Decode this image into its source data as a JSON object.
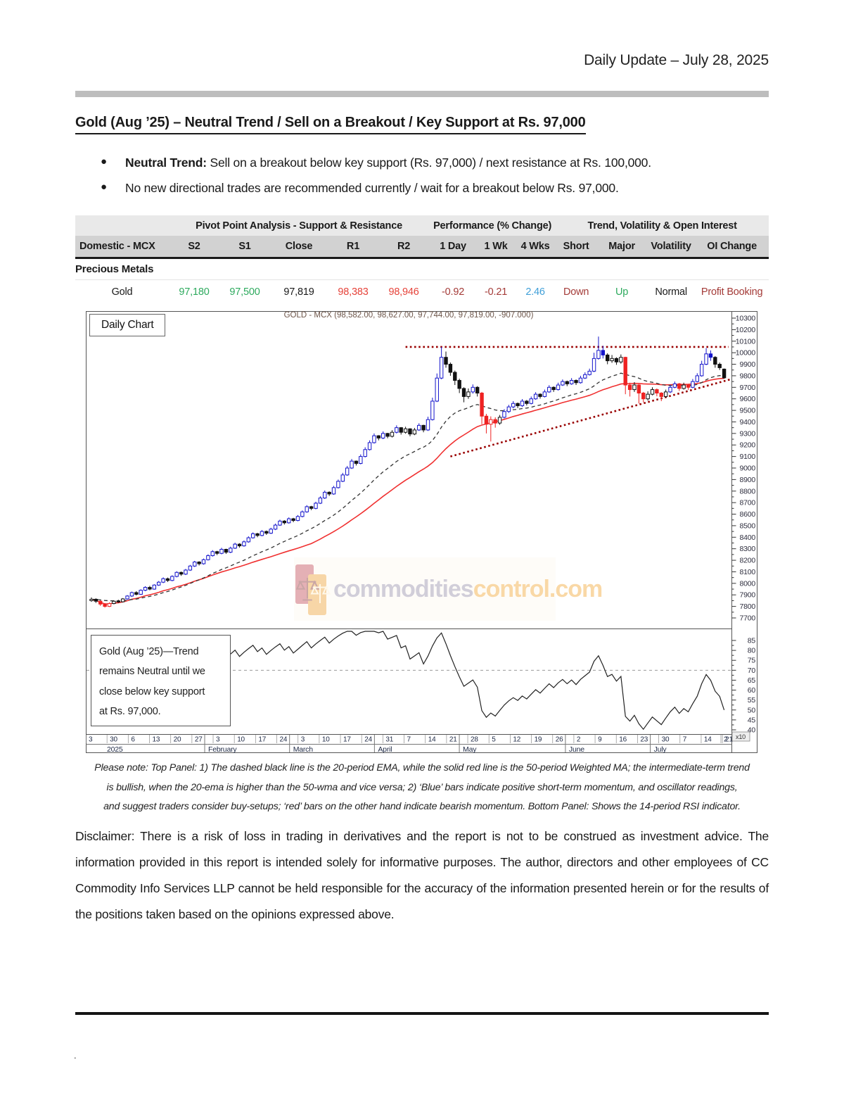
{
  "page": {
    "header_right": "Daily Update – July 28, 2025",
    "footer_dot": "."
  },
  "section": {
    "title": "Gold (Aug  ’25) – Neutral Trend / Sell on a Breakout / Key Support at Rs. 97,000",
    "bullets": [
      {
        "bold": "Neutral Trend:",
        "text": " Sell on a breakout below key support (Rs. 97,000) / next resistance at Rs. 100,000."
      },
      {
        "bold": "",
        "text": "No new directional trades are recommended currently / wait for a breakout below Rs. 97,000."
      }
    ]
  },
  "table": {
    "group_headers": [
      "Pivot Point Analysis - Support & Resistance",
      "Performance (% Change)",
      "Trend, Volatility & Open Interest"
    ],
    "columns": [
      "Domestic - MCX",
      "S2",
      "S1",
      "Close",
      "R1",
      "R2",
      "1 Day",
      "1 Wk",
      "4 Wks",
      "Short",
      "Major",
      "Volatility",
      "OI Change"
    ],
    "section_row": "Precious Metals",
    "rows": [
      {
        "name": "Gold",
        "s2": "97,180",
        "s1": "97,500",
        "close": "97,819",
        "r1": "98,383",
        "r2": "98,946",
        "d1": "-0.92",
        "w1": "-0.21",
        "w4": "2.46",
        "short": "Down",
        "major": "Up",
        "volatility": "Normal",
        "oi_change": "Profit Booking"
      }
    ]
  },
  "notes": {
    "lines": [
      "Please note: Top Panel: 1) The dashed black line is the 20-period EMA, while the solid red line is the 50-period Weighted MA; the intermediate-term trend",
      "is bullish, when the 20-ema is higher than the 50-wma and vice versa; 2)  ‘Blue’  bars indicate positive short-term momentum, and oscillator readings,",
      "and suggest traders consider buy-setups;  ‘red’  bars on the other hand indicate bearish momentum. Bottom Panel: Shows the 14-period RSI indicator."
    ],
    "disclaimer": "Disclaimer: There is a risk of loss in trading in derivatives and the report is not to be construed as investment advice. The information provided in this report is intended solely for informative purposes. The author, directors and other employees of CC Commodity Info Services LLP cannot be held responsible for the accuracy of the information presented herein or for the results of the positions taken based on the opinions expressed above."
  },
  "chart_data": {
    "type": "candlestick",
    "title": "GOLD - MCX (98,582.00, 98,627.00, 97,744.00, 97,819.00, -907.000)",
    "panel_label": "Daily Chart",
    "price_axis": {
      "min": 7700,
      "max": 10300,
      "step": 100,
      "multiplier_badge": "x10"
    },
    "rsi_axis": {
      "min": 40,
      "max": 85,
      "step": 5
    },
    "x_axis": {
      "year_label": "2025",
      "week_ticks": [
        "3",
        "30",
        "6",
        "13",
        "20",
        "27",
        "3",
        "10",
        "17",
        "24",
        "3",
        "10",
        "17",
        "24",
        "31",
        "7",
        "14",
        "21",
        "28",
        "5",
        "12",
        "19",
        "26",
        "2",
        "9",
        "16",
        "23",
        "30",
        "7",
        "14",
        "21",
        "2"
      ],
      "months": [
        {
          "label": "2025",
          "tick": 0
        },
        {
          "label": "February",
          "tick": 6
        },
        {
          "label": "March",
          "tick": 10
        },
        {
          "label": "April",
          "tick": 14
        },
        {
          "label": "May",
          "tick": 18
        },
        {
          "label": "June",
          "tick": 23
        },
        {
          "label": "July",
          "tick": 27
        }
      ]
    },
    "annotation_box": {
      "lines": [
        "Gold (Aug  ’25)—Trend",
        "remains Neutral until we",
        "close below key support",
        "at Rs. 97,000."
      ]
    },
    "watermark": {
      "text_gray": "commodities",
      "text_orange": "control.com"
    },
    "indicators": {
      "ema_period": 20,
      "wma_period": 50,
      "rsi_period": 14,
      "rsi_reference": 70
    },
    "trendlines": [
      {
        "kind": "resistance",
        "x1_candle": 70,
        "value1": 10050,
        "x2_candle": 142,
        "value2": 10050
      },
      {
        "kind": "support",
        "x1_candle": 80,
        "value1": 9100,
        "x2_candle": 142.5,
        "value2": 9770
      }
    ],
    "colors": {
      "up_momentum": "#1414cc",
      "down_momentum": "#ee2222",
      "neutral": "#111111",
      "wma": "#f03030",
      "ema": "#333333",
      "trendline": "#990000",
      "rsi_line": "#222222",
      "table_green": "#2eaa5e",
      "table_red": "#e6433a",
      "table_maroon": "#a43b38",
      "table_blue": "#3f9fd8"
    },
    "candles": [
      [
        7850,
        7878,
        7840,
        7862,
        "k"
      ],
      [
        7862,
        7870,
        7830,
        7845,
        "k"
      ],
      [
        7845,
        7852,
        7805,
        7820,
        "r"
      ],
      [
        7820,
        7828,
        7790,
        7800,
        "r"
      ],
      [
        7800,
        7835,
        7795,
        7825,
        "r"
      ],
      [
        7825,
        7852,
        7818,
        7845,
        "k"
      ],
      [
        7845,
        7858,
        7830,
        7840,
        "k"
      ],
      [
        7840,
        7872,
        7835,
        7865,
        "k"
      ],
      [
        7865,
        7898,
        7858,
        7890,
        "b"
      ],
      [
        7890,
        7928,
        7882,
        7920,
        "b"
      ],
      [
        7920,
        7932,
        7895,
        7905,
        "k"
      ],
      [
        7905,
        7948,
        7900,
        7940,
        "b"
      ],
      [
        7940,
        7975,
        7932,
        7965,
        "b"
      ],
      [
        7965,
        7978,
        7940,
        7950,
        "k"
      ],
      [
        7950,
        7992,
        7945,
        7985,
        "b"
      ],
      [
        7985,
        8020,
        7978,
        8010,
        "b"
      ],
      [
        8010,
        8052,
        8002,
        8040,
        "b"
      ],
      [
        8040,
        8050,
        8012,
        8025,
        "k"
      ],
      [
        8025,
        8070,
        8018,
        8060,
        "b"
      ],
      [
        8060,
        8105,
        8052,
        8095,
        "b"
      ],
      [
        8095,
        8102,
        8065,
        8080,
        "k"
      ],
      [
        8080,
        8125,
        8072,
        8115,
        "b"
      ],
      [
        8115,
        8160,
        8108,
        8150,
        "b"
      ],
      [
        8150,
        8195,
        8142,
        8185,
        "b"
      ],
      [
        8185,
        8192,
        8155,
        8170,
        "k"
      ],
      [
        8170,
        8215,
        8162,
        8205,
        "b"
      ],
      [
        8205,
        8252,
        8198,
        8240,
        "b"
      ],
      [
        8240,
        8288,
        8232,
        8275,
        "b"
      ],
      [
        8275,
        8282,
        8245,
        8260,
        "k"
      ],
      [
        8260,
        8308,
        8252,
        8295,
        "b"
      ],
      [
        8295,
        8300,
        8255,
        8270,
        "k"
      ],
      [
        8270,
        8318,
        8262,
        8305,
        "b"
      ],
      [
        8305,
        8352,
        8298,
        8340,
        "b"
      ],
      [
        8340,
        8348,
        8310,
        8325,
        "k"
      ],
      [
        8325,
        8372,
        8318,
        8360,
        "b"
      ],
      [
        8360,
        8408,
        8352,
        8395,
        "b"
      ],
      [
        8395,
        8442,
        8388,
        8430,
        "b"
      ],
      [
        8430,
        8438,
        8400,
        8415,
        "k"
      ],
      [
        8415,
        8462,
        8408,
        8450,
        "b"
      ],
      [
        8450,
        8458,
        8420,
        8435,
        "k"
      ],
      [
        8435,
        8482,
        8428,
        8470,
        "b"
      ],
      [
        8470,
        8518,
        8462,
        8505,
        "b"
      ],
      [
        8505,
        8552,
        8498,
        8540,
        "b"
      ],
      [
        8540,
        8548,
        8510,
        8525,
        "k"
      ],
      [
        8525,
        8572,
        8518,
        8560,
        "b"
      ],
      [
        8560,
        8568,
        8530,
        8545,
        "k"
      ],
      [
        8545,
        8592,
        8538,
        8580,
        "b"
      ],
      [
        8580,
        8632,
        8572,
        8620,
        "b"
      ],
      [
        8620,
        8678,
        8612,
        8665,
        "b"
      ],
      [
        8665,
        8672,
        8635,
        8650,
        "k"
      ],
      [
        8650,
        8708,
        8642,
        8695,
        "b"
      ],
      [
        8695,
        8755,
        8688,
        8740,
        "b"
      ],
      [
        8740,
        8805,
        8732,
        8790,
        "b"
      ],
      [
        8790,
        8798,
        8758,
        8775,
        "k"
      ],
      [
        8775,
        8845,
        8768,
        8830,
        "b"
      ],
      [
        8830,
        8900,
        8822,
        8885,
        "b"
      ],
      [
        8885,
        8958,
        8878,
        8940,
        "b"
      ],
      [
        8940,
        9018,
        8932,
        9000,
        "b"
      ],
      [
        9000,
        9078,
        8992,
        9060,
        "b"
      ],
      [
        9060,
        9065,
        9022,
        9040,
        "k"
      ],
      [
        9040,
        9118,
        9032,
        9100,
        "b"
      ],
      [
        9100,
        9180,
        9092,
        9160,
        "b"
      ],
      [
        9160,
        9240,
        9152,
        9220,
        "b"
      ],
      [
        9220,
        9300,
        9212,
        9280,
        "b"
      ],
      [
        9280,
        9285,
        9240,
        9260,
        "k"
      ],
      [
        9260,
        9318,
        9250,
        9300,
        "b"
      ],
      [
        9300,
        9305,
        9258,
        9275,
        "k"
      ],
      [
        9275,
        9328,
        9265,
        9310,
        "k"
      ],
      [
        9310,
        9370,
        9300,
        9350,
        "b"
      ],
      [
        9350,
        9355,
        9290,
        9310,
        "k"
      ],
      [
        9310,
        9358,
        9298,
        9340,
        "k"
      ],
      [
        9340,
        9345,
        9275,
        9295,
        "k"
      ],
      [
        9295,
        9348,
        9285,
        9330,
        "k"
      ],
      [
        9330,
        9388,
        9322,
        9370,
        "b"
      ],
      [
        9370,
        9375,
        9310,
        9330,
        "k"
      ],
      [
        9330,
        9445,
        9322,
        9420,
        "b"
      ],
      [
        9420,
        9610,
        9412,
        9580,
        "b"
      ],
      [
        9580,
        9820,
        9572,
        9780,
        "b"
      ],
      [
        9780,
        10050,
        9770,
        9960,
        "b"
      ],
      [
        9960,
        10010,
        9870,
        9900,
        "k"
      ],
      [
        9900,
        9915,
        9800,
        9830,
        "k"
      ],
      [
        9830,
        9845,
        9720,
        9760,
        "k"
      ],
      [
        9760,
        9775,
        9650,
        9690,
        "k"
      ],
      [
        9690,
        9700,
        9570,
        9620,
        "k"
      ],
      [
        9620,
        9690,
        9600,
        9660,
        "k"
      ],
      [
        9660,
        9725,
        9645,
        9700,
        "b"
      ],
      [
        9700,
        9710,
        9620,
        9650,
        "k"
      ],
      [
        9650,
        9660,
        9380,
        9450,
        "r"
      ],
      [
        9450,
        9470,
        9300,
        9380,
        "r"
      ],
      [
        9380,
        9448,
        9230,
        9420,
        "r"
      ],
      [
        9420,
        9440,
        9350,
        9390,
        "r"
      ],
      [
        9390,
        9460,
        9375,
        9440,
        "k"
      ],
      [
        9440,
        9510,
        9430,
        9490,
        "b"
      ],
      [
        9490,
        9548,
        9478,
        9530,
        "b"
      ],
      [
        9530,
        9580,
        9518,
        9560,
        "b"
      ],
      [
        9560,
        9568,
        9520,
        9540,
        "k"
      ],
      [
        9540,
        9598,
        9530,
        9580,
        "b"
      ],
      [
        9580,
        9590,
        9542,
        9560,
        "k"
      ],
      [
        9560,
        9620,
        9552,
        9600,
        "b"
      ],
      [
        9600,
        9658,
        9592,
        9640,
        "b"
      ],
      [
        9640,
        9648,
        9602,
        9620,
        "k"
      ],
      [
        9620,
        9680,
        9612,
        9660,
        "b"
      ],
      [
        9660,
        9718,
        9652,
        9700,
        "b"
      ],
      [
        9700,
        9708,
        9660,
        9680,
        "k"
      ],
      [
        9680,
        9740,
        9672,
        9720,
        "b"
      ],
      [
        9720,
        9768,
        9712,
        9750,
        "b"
      ],
      [
        9750,
        9758,
        9710,
        9730,
        "k"
      ],
      [
        9730,
        9780,
        9722,
        9760,
        "b"
      ],
      [
        9760,
        9768,
        9720,
        9740,
        "k"
      ],
      [
        9740,
        9800,
        9732,
        9780,
        "b"
      ],
      [
        9780,
        9830,
        9772,
        9810,
        "b"
      ],
      [
        9810,
        9862,
        9802,
        9840,
        "b"
      ],
      [
        9840,
        10000,
        9832,
        9950,
        "b"
      ],
      [
        9950,
        10140,
        9940,
        10020,
        "b"
      ],
      [
        10020,
        10060,
        9950,
        9980,
        "b"
      ],
      [
        9980,
        9995,
        9900,
        9930,
        "k"
      ],
      [
        9930,
        9980,
        9912,
        9950,
        "k"
      ],
      [
        9950,
        9960,
        9895,
        9920,
        "k"
      ],
      [
        9920,
        9985,
        9905,
        9960,
        "k"
      ],
      [
        9960,
        9965,
        9640,
        9720,
        "r"
      ],
      [
        9720,
        9740,
        9620,
        9680,
        "r"
      ],
      [
        9680,
        9745,
        9660,
        9720,
        "k"
      ],
      [
        9720,
        9728,
        9560,
        9650,
        "r"
      ],
      [
        9650,
        9660,
        9570,
        9600,
        "r"
      ],
      [
        9600,
        9665,
        9585,
        9640,
        "k"
      ],
      [
        9640,
        9700,
        9630,
        9680,
        "k"
      ],
      [
        9680,
        9690,
        9622,
        9650,
        "r"
      ],
      [
        9650,
        9658,
        9580,
        9620,
        "r"
      ],
      [
        9620,
        9680,
        9610,
        9660,
        "k"
      ],
      [
        9660,
        9722,
        9650,
        9700,
        "b"
      ],
      [
        9700,
        9750,
        9692,
        9730,
        "b"
      ],
      [
        9730,
        9738,
        9668,
        9690,
        "r"
      ],
      [
        9690,
        9740,
        9680,
        9720,
        "k"
      ],
      [
        9720,
        9728,
        9678,
        9700,
        "r"
      ],
      [
        9700,
        9772,
        9692,
        9750,
        "b"
      ],
      [
        9750,
        9822,
        9742,
        9800,
        "b"
      ],
      [
        9800,
        9930,
        9792,
        9900,
        "b"
      ],
      [
        9900,
        10040,
        9892,
        9990,
        "b"
      ],
      [
        9990,
        10020,
        9930,
        9960,
        "b"
      ],
      [
        9960,
        9970,
        9870,
        9900,
        "k"
      ],
      [
        9900,
        9915,
        9850,
        9870,
        "k"
      ],
      [
        9858,
        9863,
        9774,
        9782,
        "k"
      ]
    ]
  }
}
